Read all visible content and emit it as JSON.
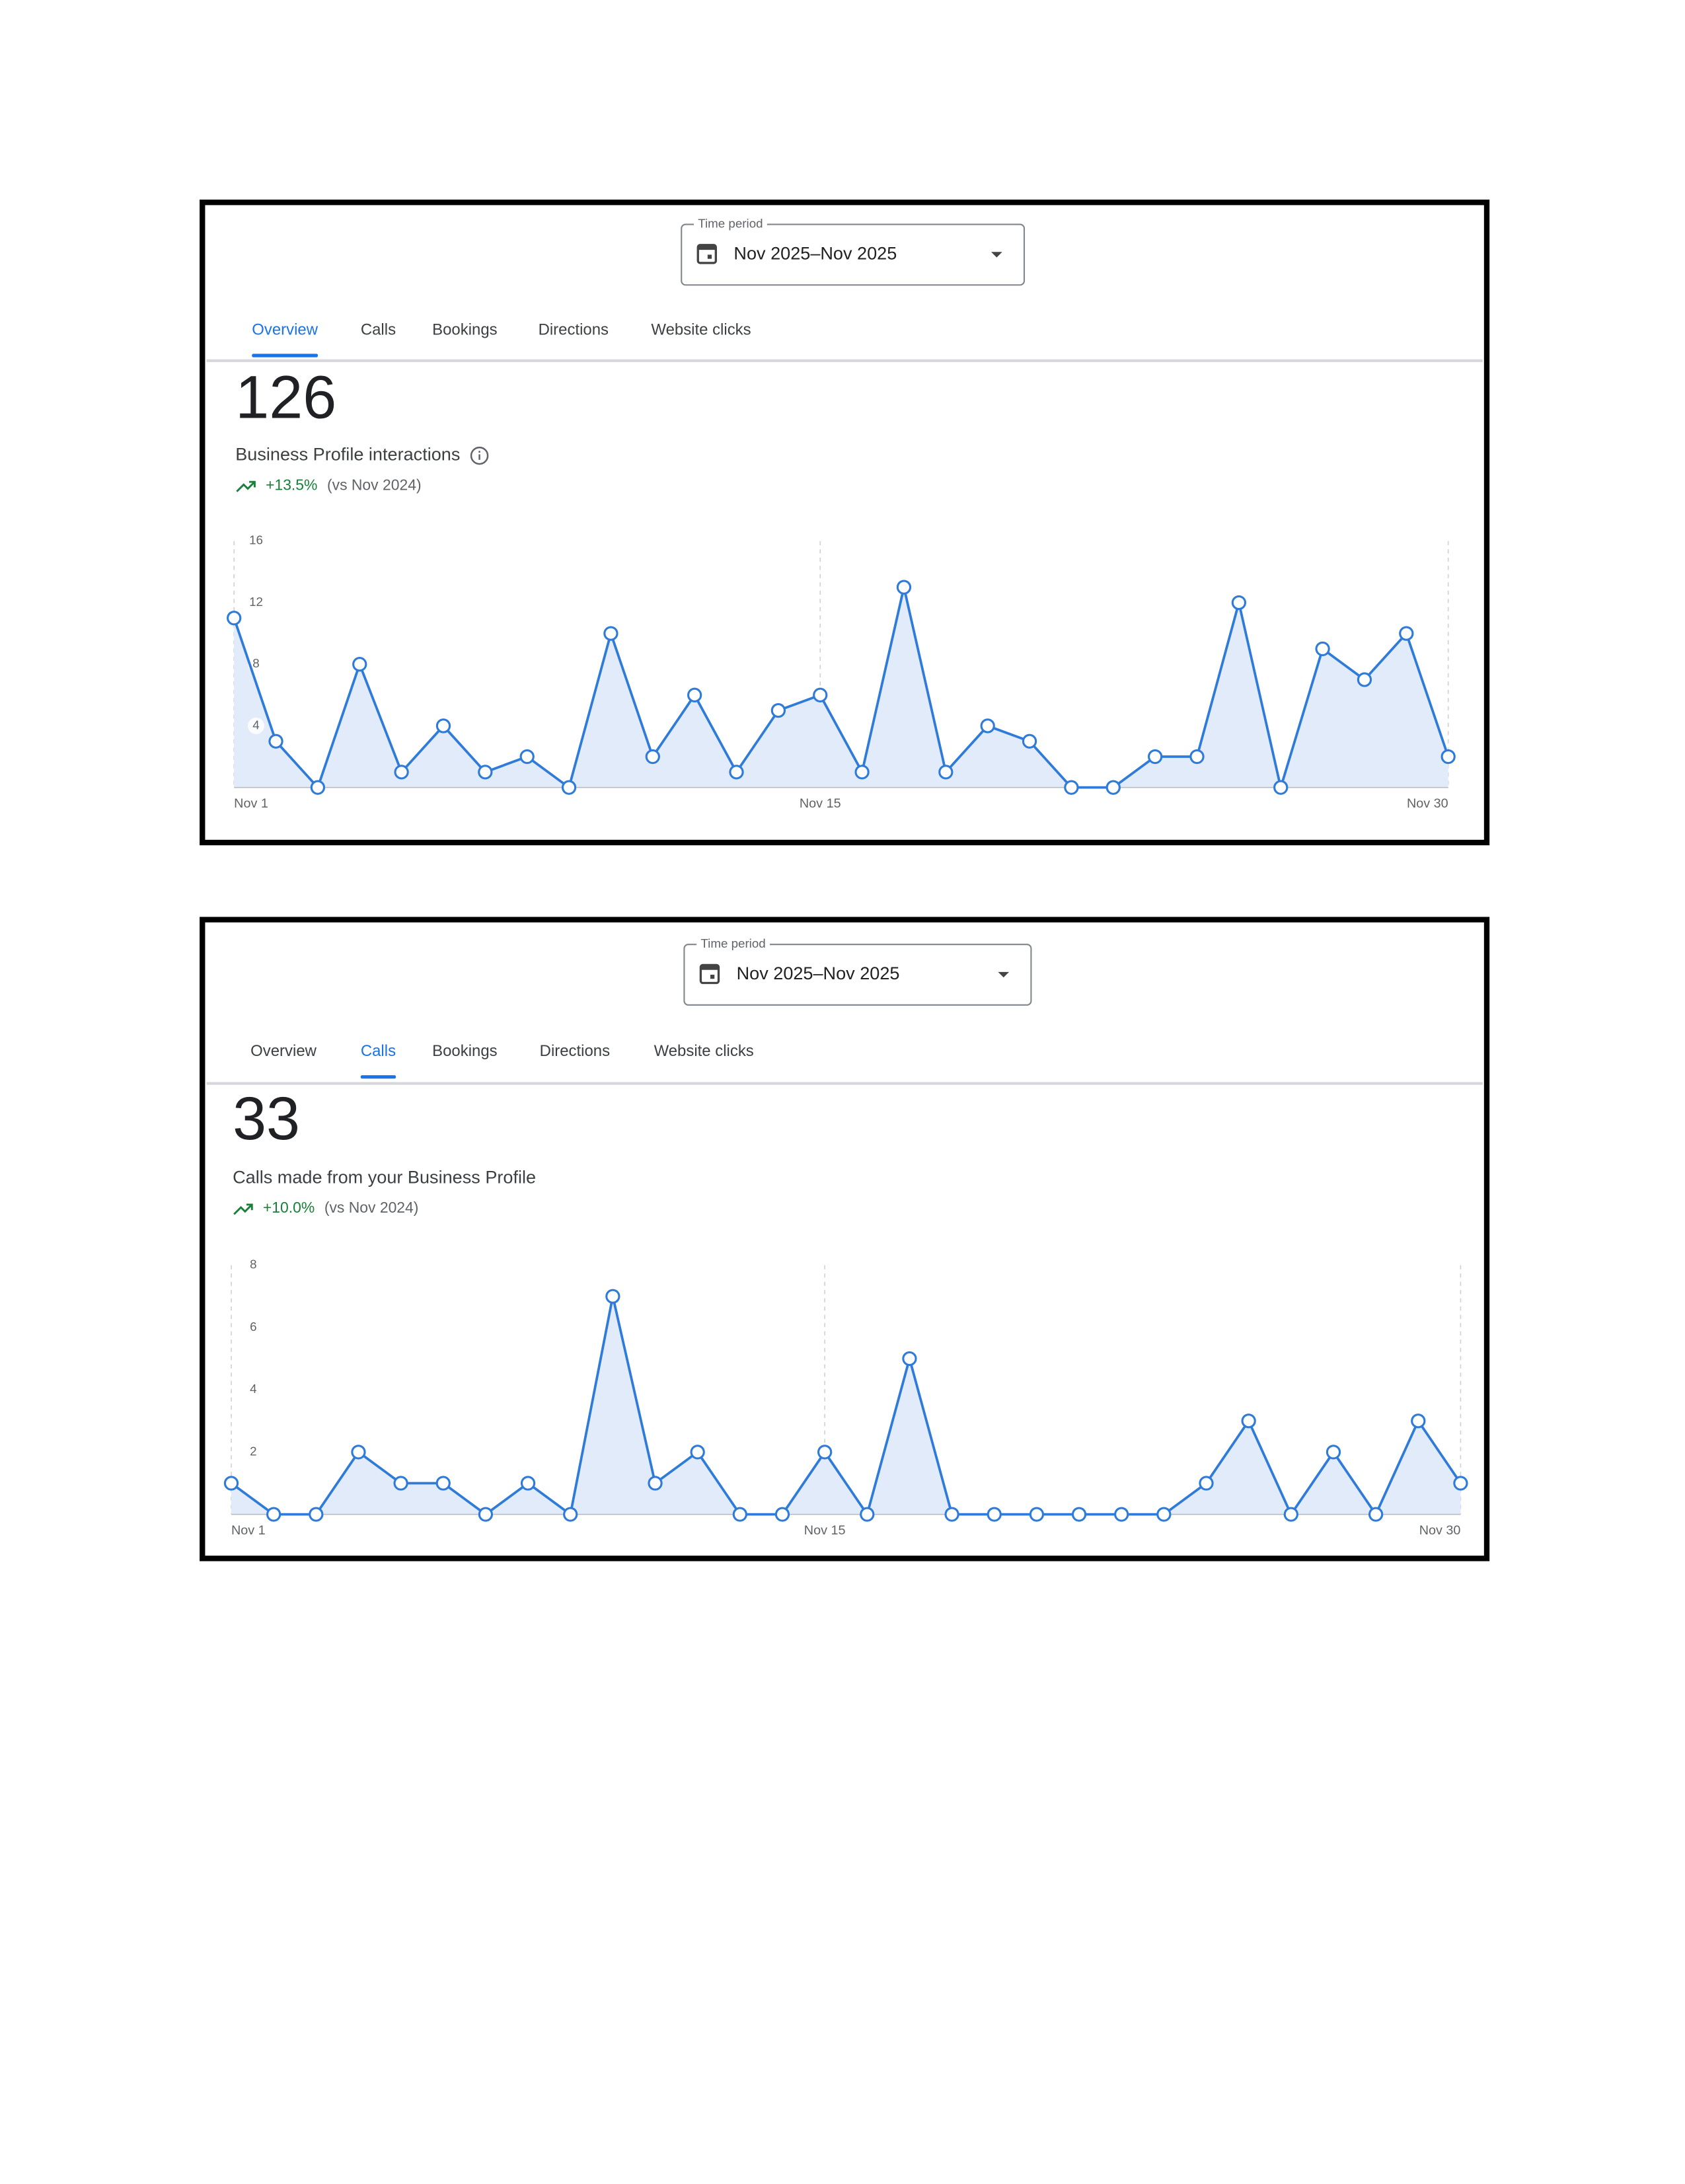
{
  "panels": [
    {
      "time_period_label": "Time period",
      "time_period": "Nov 2025–Nov 2025",
      "tabs": [
        "Overview",
        "Calls",
        "Bookings",
        "Directions",
        "Website clicks"
      ],
      "active_tab": 0,
      "metric": 126,
      "description": "Business Profile interactions",
      "change": "+13.5%",
      "comparison": "(vs Nov 2024)"
    },
    {
      "time_period_label": "Time period",
      "time_period": "Nov 2025–Nov 2025",
      "tabs": [
        "Overview",
        "Calls",
        "Bookings",
        "Directions",
        "Website clicks"
      ],
      "active_tab": 1,
      "metric": 33,
      "description": "Calls made from your Business Profile",
      "change": "+10.0%",
      "comparison": "(vs Nov 2024)"
    }
  ],
  "chart_data": [
    {
      "type": "line",
      "color": "#2f7bd9",
      "fill": "#e2ebfa",
      "categories": [
        "Nov 1",
        null,
        null,
        null,
        null,
        null,
        null,
        null,
        null,
        null,
        null,
        null,
        null,
        null,
        "Nov 15",
        null,
        null,
        null,
        null,
        null,
        null,
        null,
        null,
        null,
        null,
        null,
        null,
        null,
        null,
        "Nov 30"
      ],
      "values": [
        11,
        3,
        0,
        8,
        1,
        4,
        1,
        2,
        0,
        10,
        2,
        6,
        1,
        5,
        6,
        1,
        13,
        1,
        4,
        3,
        0,
        0,
        2,
        2,
        12,
        0,
        9,
        7,
        10,
        2
      ],
      "ylim": [
        0,
        16
      ],
      "yticks": [
        4,
        8,
        12,
        16
      ],
      "grid": true
    },
    {
      "type": "line",
      "color": "#2f7bd9",
      "fill": "#e2ebfa",
      "categories": [
        "Nov 1",
        null,
        null,
        null,
        null,
        null,
        null,
        null,
        null,
        null,
        null,
        null,
        null,
        null,
        "Nov 15",
        null,
        null,
        null,
        null,
        null,
        null,
        null,
        null,
        null,
        null,
        null,
        null,
        null,
        null,
        "Nov 30"
      ],
      "values": [
        1,
        0,
        0,
        2,
        1,
        1,
        0,
        1,
        0,
        7,
        1,
        2,
        0,
        0,
        2,
        0,
        5,
        0,
        0,
        0,
        0,
        0,
        0,
        1,
        3,
        0,
        2,
        0,
        3,
        1
      ],
      "ylim": [
        0,
        8
      ],
      "yticks": [
        2,
        4,
        6,
        8
      ],
      "grid": true
    }
  ]
}
